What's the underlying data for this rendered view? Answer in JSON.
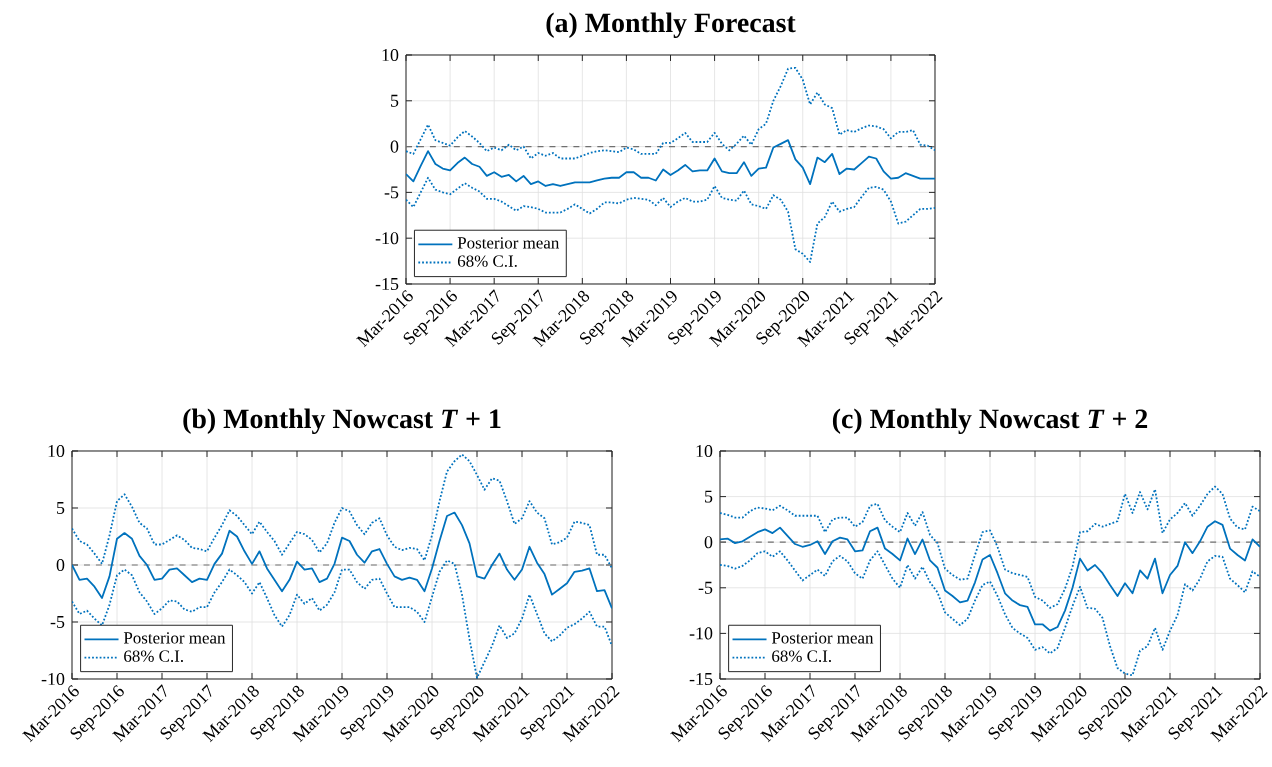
{
  "chart_data": [
    {
      "type": "line",
      "title": "(a) Monthly Forecast",
      "x": [
        "2016-03",
        "2016-04",
        "2016-05",
        "2016-06",
        "2016-07",
        "2016-08",
        "2016-09",
        "2016-10",
        "2016-11",
        "2016-12",
        "2017-01",
        "2017-02",
        "2017-03",
        "2017-04",
        "2017-05",
        "2017-06",
        "2017-07",
        "2017-08",
        "2017-09",
        "2017-10",
        "2017-11",
        "2017-12",
        "2018-01",
        "2018-02",
        "2018-03",
        "2018-04",
        "2018-05",
        "2018-06",
        "2018-07",
        "2018-08",
        "2018-09",
        "2018-10",
        "2018-11",
        "2018-12",
        "2019-01",
        "2019-02",
        "2019-03",
        "2019-04",
        "2019-05",
        "2019-06",
        "2019-07",
        "2019-08",
        "2019-09",
        "2019-10",
        "2019-11",
        "2019-12",
        "2020-01",
        "2020-02",
        "2020-03",
        "2020-04",
        "2020-05",
        "2020-06",
        "2020-07",
        "2020-08",
        "2020-09",
        "2020-10",
        "2020-11",
        "2020-12",
        "2021-01",
        "2021-02",
        "2021-03",
        "2021-04",
        "2021-05",
        "2021-06",
        "2021-07",
        "2021-08",
        "2021-09",
        "2021-10",
        "2021-11",
        "2021-12",
        "2022-01",
        "2022-02",
        "2022-03"
      ],
      "xlim": [
        "2016-03",
        "2022-03"
      ],
      "xticks": [
        {
          "value": "2016-03",
          "label": "Mar-2016"
        },
        {
          "value": "2016-09",
          "label": "Sep-2016"
        },
        {
          "value": "2017-03",
          "label": "Mar-2017"
        },
        {
          "value": "2017-09",
          "label": "Sep-2017"
        },
        {
          "value": "2018-03",
          "label": "Mar-2018"
        },
        {
          "value": "2018-09",
          "label": "Sep-2018"
        },
        {
          "value": "2019-03",
          "label": "Mar-2019"
        },
        {
          "value": "2019-09",
          "label": "Sep-2019"
        },
        {
          "value": "2020-03",
          "label": "Mar-2020"
        },
        {
          "value": "2020-09",
          "label": "Sep-2020"
        },
        {
          "value": "2021-03",
          "label": "Mar-2021"
        },
        {
          "value": "2021-09",
          "label": "Sep-2021"
        },
        {
          "value": "2022-03",
          "label": "Mar-2022"
        }
      ],
      "ylim": [
        -15,
        10
      ],
      "yticks": [
        -15,
        -10,
        -5,
        0,
        5,
        10
      ],
      "grid": true,
      "legend": "bottom left",
      "ref_lines": [
        {
          "axis": "y",
          "value": 0,
          "color": "#707070",
          "line_style": "dashed"
        }
      ],
      "series": [
        {
          "name": "Posterior mean",
          "color": "#0072bd",
          "line_style": "solid",
          "values": [
            -3.0,
            -3.8,
            -2.1,
            -0.5,
            -1.9,
            -2.4,
            -2.6,
            -1.8,
            -1.2,
            -1.9,
            -2.2,
            -3.2,
            -2.8,
            -3.3,
            -3.1,
            -3.8,
            -3.2,
            -4.1,
            -3.8,
            -4.3,
            -4.1,
            -4.3,
            -4.1,
            -3.9,
            -3.9,
            -3.9,
            -3.7,
            -3.5,
            -3.4,
            -3.4,
            -2.8,
            -2.8,
            -3.4,
            -3.4,
            -3.7,
            -2.5,
            -3.1,
            -2.6,
            -2.0,
            -2.7,
            -2.6,
            -2.6,
            -1.3,
            -2.7,
            -2.9,
            -2.9,
            -1.7,
            -3.2,
            -2.4,
            -2.3,
            -0.1,
            0.3,
            0.7,
            -1.4,
            -2.3,
            -4.1,
            -1.2,
            -1.7,
            -0.8,
            -3.0,
            -2.4,
            -2.5,
            -1.8,
            -1.1,
            -1.3,
            -2.7,
            -3.5,
            -3.4,
            -2.9,
            -3.2,
            -3.5,
            -3.5,
            -3.5
          ]
        },
        {
          "name": "68% C.I.",
          "color": "#0072bd",
          "line_style": "dotted",
          "values": [
            -0.5,
            -0.8,
            0.8,
            2.4,
            0.7,
            0.4,
            0.1,
            1.0,
            1.7,
            1.1,
            0.4,
            -0.5,
            -0.1,
            -0.4,
            0.2,
            -0.4,
            0,
            -1.3,
            -0.7,
            -1.0,
            -0.7,
            -1.3,
            -1.3,
            -1.3,
            -1.0,
            -0.7,
            -0.5,
            -0.4,
            -0.5,
            -0.6,
            -0.1,
            -0.3,
            -0.8,
            -0.8,
            -0.8,
            0.4,
            0.4,
            0.9,
            1.5,
            0.5,
            0.5,
            0.5,
            1.5,
            0.3,
            -0.4,
            0.3,
            1.2,
            0.2,
            1.9,
            2.5,
            5.0,
            6.6,
            8.5,
            8.6,
            7.3,
            4.6,
            5.9,
            4.6,
            4.2,
            1.3,
            1.8,
            1.6,
            2.0,
            2.3,
            2.2,
            1.9,
            0.9,
            1.6,
            1.6,
            1.8,
            0.2,
            0.1,
            -0.4
          ]
        },
        {
          "color": "#0072bd",
          "line_style": "dotted",
          "values": [
            -5.8,
            -6.6,
            -5.0,
            -3.4,
            -4.7,
            -5.0,
            -5.2,
            -4.6,
            -4.0,
            -4.5,
            -4.9,
            -5.7,
            -5.7,
            -6.0,
            -6.5,
            -7.0,
            -6.5,
            -6.6,
            -6.8,
            -7.2,
            -7.2,
            -7.2,
            -6.8,
            -6.3,
            -6.8,
            -7.3,
            -6.8,
            -6.1,
            -6.1,
            -6.2,
            -5.8,
            -5.6,
            -5.7,
            -5.8,
            -6.4,
            -5.6,
            -6.6,
            -6.0,
            -5.6,
            -6.0,
            -6.0,
            -5.8,
            -4.3,
            -5.6,
            -5.8,
            -5.9,
            -4.8,
            -6.3,
            -6.5,
            -6.8,
            -5.3,
            -5.8,
            -7.1,
            -11.2,
            -11.7,
            -12.6,
            -8.4,
            -7.7,
            -6.0,
            -7.1,
            -6.8,
            -6.6,
            -5.5,
            -4.5,
            -4.4,
            -4.7,
            -6.0,
            -8.4,
            -8.2,
            -7.5,
            -6.8,
            -6.8,
            -6.7
          ]
        }
      ]
    },
    {
      "type": "line",
      "title": "(b) Monthly Nowcast *T* + 1",
      "x": [
        "2016-03",
        "2016-04",
        "2016-05",
        "2016-06",
        "2016-07",
        "2016-08",
        "2016-09",
        "2016-10",
        "2016-11",
        "2016-12",
        "2017-01",
        "2017-02",
        "2017-03",
        "2017-04",
        "2017-05",
        "2017-06",
        "2017-07",
        "2017-08",
        "2017-09",
        "2017-10",
        "2017-11",
        "2017-12",
        "2018-01",
        "2018-02",
        "2018-03",
        "2018-04",
        "2018-05",
        "2018-06",
        "2018-07",
        "2018-08",
        "2018-09",
        "2018-10",
        "2018-11",
        "2018-12",
        "2019-01",
        "2019-02",
        "2019-03",
        "2019-04",
        "2019-05",
        "2019-06",
        "2019-07",
        "2019-08",
        "2019-09",
        "2019-10",
        "2019-11",
        "2019-12",
        "2020-01",
        "2020-02",
        "2020-03",
        "2020-04",
        "2020-05",
        "2020-06",
        "2020-07",
        "2020-08",
        "2020-09",
        "2020-10",
        "2020-11",
        "2020-12",
        "2021-01",
        "2021-02",
        "2021-03",
        "2021-04",
        "2021-05",
        "2021-06",
        "2021-07",
        "2021-08",
        "2021-09",
        "2021-10",
        "2021-11",
        "2021-12",
        "2022-01",
        "2022-02",
        "2022-03"
      ],
      "xlim": [
        "2016-03",
        "2022-03"
      ],
      "xticks": [
        {
          "value": "2016-03",
          "label": "Mar-2016"
        },
        {
          "value": "2016-09",
          "label": "Sep-2016"
        },
        {
          "value": "2017-03",
          "label": "Mar-2017"
        },
        {
          "value": "2017-09",
          "label": "Sep-2017"
        },
        {
          "value": "2018-03",
          "label": "Mar-2018"
        },
        {
          "value": "2018-09",
          "label": "Sep-2018"
        },
        {
          "value": "2019-03",
          "label": "Mar-2019"
        },
        {
          "value": "2019-09",
          "label": "Sep-2019"
        },
        {
          "value": "2020-03",
          "label": "Mar-2020"
        },
        {
          "value": "2020-09",
          "label": "Sep-2020"
        },
        {
          "value": "2021-03",
          "label": "Mar-2021"
        },
        {
          "value": "2021-09",
          "label": "Sep-2021"
        },
        {
          "value": "2022-03",
          "label": "Mar-2022"
        }
      ],
      "ylim": [
        -10,
        10
      ],
      "yticks": [
        -10,
        -5,
        0,
        5,
        10
      ],
      "grid": true,
      "legend": "bottom left",
      "ref_lines": [
        {
          "axis": "y",
          "value": 0,
          "color": "#707070",
          "line_style": "dashed"
        }
      ],
      "series": [
        {
          "name": "Posterior mean",
          "color": "#0072bd",
          "line_style": "solid",
          "values": [
            0,
            -1.3,
            -1.2,
            -1.9,
            -2.9,
            -1.0,
            2.3,
            2.8,
            2.3,
            0.8,
            0,
            -1.3,
            -1.2,
            -0.4,
            -0.3,
            -0.9,
            -1.5,
            -1.2,
            -1.3,
            0.1,
            1.0,
            3.0,
            2.5,
            1.2,
            0.1,
            1.2,
            -0.3,
            -1.3,
            -2.3,
            -1.3,
            0.3,
            -0.4,
            -0.3,
            -1.5,
            -1.2,
            0.1,
            2.4,
            2.1,
            0.9,
            0.2,
            1.2,
            1.4,
            0.1,
            -1.0,
            -1.3,
            -1.1,
            -1.3,
            -2.3,
            -0.3,
            2.1,
            4.3,
            4.6,
            3.5,
            1.9,
            -1.0,
            -1.2,
            0,
            1.0,
            -0.4,
            -1.3,
            -0.4,
            1.6,
            0.2,
            -0.8,
            -2.6,
            -2.1,
            -1.6,
            -0.6,
            -0.5,
            -0.3,
            -2.3,
            -2.2,
            -3.8
          ]
        },
        {
          "name": "68% C.I.",
          "color": "#0072bd",
          "line_style": "dotted",
          "values": [
            3.2,
            2.1,
            1.8,
            1.0,
            0.1,
            2.6,
            5.6,
            6.2,
            5.1,
            3.7,
            3.2,
            1.8,
            1.8,
            2.2,
            2.6,
            2.2,
            1.5,
            1.4,
            1.2,
            2.4,
            3.5,
            4.8,
            4.3,
            3.5,
            2.7,
            3.8,
            2.9,
            2.1,
            0.9,
            1.9,
            2.9,
            2.7,
            2.2,
            1.1,
            1.9,
            3.7,
            5.0,
            4.7,
            3.5,
            2.7,
            3.7,
            4.1,
            2.6,
            1.6,
            1.3,
            1.5,
            1.4,
            0.4,
            2.6,
            5.6,
            8.2,
            9.1,
            9.7,
            9.1,
            7.9,
            6.6,
            7.6,
            7.4,
            5.6,
            3.6,
            4.1,
            5.6,
            4.6,
            4.1,
            1.8,
            2.0,
            2.4,
            3.8,
            3.7,
            3.5,
            0.9,
            0.9,
            -0.3
          ]
        },
        {
          "color": "#0072bd",
          "line_style": "dotted",
          "values": [
            -3.2,
            -4.3,
            -4.0,
            -4.7,
            -5.3,
            -3.5,
            -0.9,
            -0.4,
            -0.9,
            -2.4,
            -3.2,
            -4.3,
            -3.8,
            -3.1,
            -3.2,
            -3.9,
            -4.1,
            -3.7,
            -3.7,
            -2.4,
            -1.5,
            -0.4,
            -0.9,
            -1.5,
            -2.5,
            -1.5,
            -2.9,
            -4.4,
            -5.4,
            -4.4,
            -2.6,
            -3.4,
            -2.9,
            -4.0,
            -3.5,
            -2.4,
            -0.4,
            -0.4,
            -1.5,
            -2.1,
            -1.3,
            -1.2,
            -2.5,
            -3.7,
            -3.7,
            -3.7,
            -4.1,
            -5.0,
            -2.8,
            -0.6,
            0.4,
            0.1,
            -2.6,
            -6.5,
            -9.9,
            -8.5,
            -7.1,
            -5.3,
            -6.4,
            -6.0,
            -4.7,
            -2.6,
            -4.3,
            -6.0,
            -6.7,
            -6.2,
            -5.5,
            -5.2,
            -4.7,
            -4.1,
            -5.4,
            -5.4,
            -7.1
          ]
        }
      ]
    },
    {
      "type": "line",
      "title": "(c) Monthly Nowcast *T* + 2",
      "x": [
        "2016-03",
        "2016-04",
        "2016-05",
        "2016-06",
        "2016-07",
        "2016-08",
        "2016-09",
        "2016-10",
        "2016-11",
        "2016-12",
        "2017-01",
        "2017-02",
        "2017-03",
        "2017-04",
        "2017-05",
        "2017-06",
        "2017-07",
        "2017-08",
        "2017-09",
        "2017-10",
        "2017-11",
        "2017-12",
        "2018-01",
        "2018-02",
        "2018-03",
        "2018-04",
        "2018-05",
        "2018-06",
        "2018-07",
        "2018-08",
        "2018-09",
        "2018-10",
        "2018-11",
        "2018-12",
        "2019-01",
        "2019-02",
        "2019-03",
        "2019-04",
        "2019-05",
        "2019-06",
        "2019-07",
        "2019-08",
        "2019-09",
        "2019-10",
        "2019-11",
        "2019-12",
        "2020-01",
        "2020-02",
        "2020-03",
        "2020-04",
        "2020-05",
        "2020-06",
        "2020-07",
        "2020-08",
        "2020-09",
        "2020-10",
        "2020-11",
        "2020-12",
        "2021-01",
        "2021-02",
        "2021-03",
        "2021-04",
        "2021-05",
        "2021-06",
        "2021-07",
        "2021-08",
        "2021-09",
        "2021-10",
        "2021-11",
        "2021-12",
        "2022-01",
        "2022-02",
        "2022-03"
      ],
      "xlim": [
        "2016-03",
        "2022-03"
      ],
      "xticks": [
        {
          "value": "2016-03",
          "label": "Mar-2016"
        },
        {
          "value": "2016-09",
          "label": "Sep-2016"
        },
        {
          "value": "2017-03",
          "label": "Mar-2017"
        },
        {
          "value": "2017-09",
          "label": "Sep-2017"
        },
        {
          "value": "2018-03",
          "label": "Mar-2018"
        },
        {
          "value": "2018-09",
          "label": "Sep-2018"
        },
        {
          "value": "2019-03",
          "label": "Mar-2019"
        },
        {
          "value": "2019-09",
          "label": "Sep-2019"
        },
        {
          "value": "2020-03",
          "label": "Mar-2020"
        },
        {
          "value": "2020-09",
          "label": "Sep-2020"
        },
        {
          "value": "2021-03",
          "label": "Mar-2021"
        },
        {
          "value": "2021-09",
          "label": "Sep-2021"
        },
        {
          "value": "2022-03",
          "label": "Mar-2022"
        }
      ],
      "ylim": [
        -15,
        10
      ],
      "yticks": [
        -15,
        -10,
        -5,
        0,
        5,
        10
      ],
      "grid": true,
      "legend": "bottom left",
      "ref_lines": [
        {
          "axis": "y",
          "value": 0,
          "color": "#707070",
          "line_style": "dashed"
        }
      ],
      "series": [
        {
          "name": "Posterior mean",
          "color": "#0072bd",
          "line_style": "solid",
          "values": [
            0.3,
            0.4,
            -0.1,
            0.1,
            0.6,
            1.1,
            1.4,
            1.0,
            1.6,
            0.7,
            -0.2,
            -0.5,
            -0.3,
            0.1,
            -1.3,
            0.1,
            0.5,
            0.3,
            -1.0,
            -0.9,
            1.2,
            1.6,
            -0.7,
            -1.3,
            -2.0,
            0.4,
            -1.3,
            0.3,
            -2.0,
            -2.8,
            -5.3,
            -5.9,
            -6.6,
            -6.4,
            -4.4,
            -1.9,
            -1.4,
            -3.4,
            -5.6,
            -6.4,
            -6.9,
            -7.1,
            -9.0,
            -9.0,
            -9.7,
            -9.3,
            -7.5,
            -5.0,
            -1.8,
            -3.1,
            -2.5,
            -3.4,
            -4.7,
            -5.9,
            -4.5,
            -5.6,
            -3.1,
            -4.0,
            -1.8,
            -5.6,
            -3.6,
            -2.6,
            0,
            -1.2,
            0.1,
            1.7,
            2.3,
            1.9,
            -0.7,
            -1.4,
            -2.0,
            0.3,
            -0.5
          ]
        },
        {
          "name": "68% C.I.",
          "color": "#0072bd",
          "line_style": "dotted",
          "values": [
            3.2,
            3.0,
            2.7,
            2.7,
            3.4,
            3.8,
            3.7,
            3.5,
            4.0,
            3.5,
            2.9,
            2.9,
            2.9,
            2.9,
            1.1,
            2.5,
            2.7,
            2.7,
            1.7,
            2.2,
            4.0,
            4.2,
            2.4,
            1.7,
            1.1,
            3.2,
            1.8,
            3.3,
            0.8,
            -0.1,
            -2.9,
            -3.6,
            -4.1,
            -4.0,
            -1.4,
            1.1,
            1.3,
            -0.5,
            -3.0,
            -3.4,
            -3.6,
            -3.8,
            -6.0,
            -6.4,
            -7.2,
            -6.8,
            -5.1,
            -2.7,
            1.1,
            1.2,
            2.0,
            1.7,
            2.0,
            2.3,
            5.3,
            3.2,
            5.5,
            3.6,
            5.8,
            1.0,
            2.5,
            3.2,
            4.3,
            2.9,
            4.0,
            5.3,
            6.1,
            5.3,
            2.6,
            1.6,
            1.4,
            3.9,
            3.4
          ]
        },
        {
          "color": "#0072bd",
          "line_style": "dotted",
          "values": [
            -2.5,
            -2.6,
            -2.9,
            -2.6,
            -2.0,
            -1.2,
            -1.0,
            -1.6,
            -1.0,
            -2.0,
            -3.1,
            -4.2,
            -3.6,
            -3.0,
            -3.7,
            -2.1,
            -1.5,
            -2.1,
            -3.4,
            -4.0,
            -2.0,
            -1.0,
            -2.5,
            -4.0,
            -5.0,
            -2.5,
            -4.0,
            -2.7,
            -4.4,
            -5.5,
            -7.7,
            -8.4,
            -9.1,
            -8.4,
            -6.4,
            -4.7,
            -4.3,
            -5.9,
            -7.9,
            -9.4,
            -10.0,
            -10.5,
            -11.8,
            -11.5,
            -12.2,
            -11.6,
            -9.4,
            -7.0,
            -4.9,
            -7.2,
            -7.3,
            -8.3,
            -11.4,
            -13.8,
            -14.4,
            -14.6,
            -11.9,
            -11.4,
            -9.4,
            -11.8,
            -9.7,
            -8.0,
            -4.6,
            -5.3,
            -4.0,
            -2.1,
            -1.5,
            -1.6,
            -4.0,
            -4.7,
            -5.5,
            -3.2,
            -3.8
          ]
        }
      ]
    }
  ]
}
